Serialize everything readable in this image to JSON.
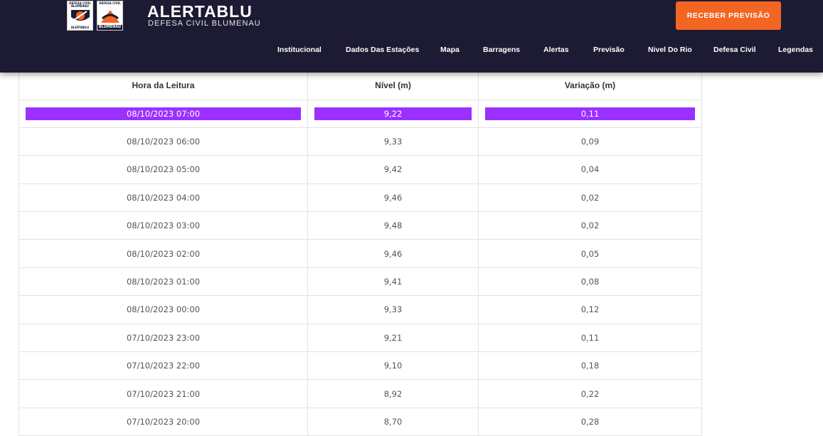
{
  "header": {
    "logo1": {
      "top": "DEFESA CIVIL BLUMENAU",
      "bottom": "ALERTABLU"
    },
    "logo2": {
      "top": "DEFESA CIVIL",
      "bottom": "BLUMENAU"
    },
    "title": "ALERTABLU",
    "subtitle": "DEFESA CIVIL BLUMENAU",
    "cta_label": "RECEBER PREVISÃO",
    "nav": [
      "Institucional",
      "Dados Das Estações",
      "Mapa",
      "Barragens",
      "Alertas",
      "Previsão",
      "Nivel Do Rio",
      "Defesa Civil",
      "Legendas"
    ]
  },
  "colors": {
    "header_bg": "#1c1b33",
    "cta": "#f26522",
    "highlight": "#9b30ff"
  },
  "table": {
    "headers": [
      "Hora da Leitura",
      "Nível (m)",
      "Variação (m)"
    ],
    "rows": [
      [
        "08/10/2023 07:00",
        "9,22",
        "0,11"
      ],
      [
        "08/10/2023 06:00",
        "9,33",
        "0,09"
      ],
      [
        "08/10/2023 05:00",
        "9,42",
        "0,04"
      ],
      [
        "08/10/2023 04:00",
        "9,46",
        "0,02"
      ],
      [
        "08/10/2023 03:00",
        "9,48",
        "0,02"
      ],
      [
        "08/10/2023 02:00",
        "9,46",
        "0,05"
      ],
      [
        "08/10/2023 01:00",
        "9,41",
        "0,08"
      ],
      [
        "08/10/2023 00:00",
        "9,33",
        "0,12"
      ],
      [
        "07/10/2023 23:00",
        "9,21",
        "0,11"
      ],
      [
        "07/10/2023 22:00",
        "9,10",
        "0,18"
      ],
      [
        "07/10/2023 21:00",
        "8,92",
        "0,22"
      ],
      [
        "07/10/2023 20:00",
        "8,70",
        "0,28"
      ]
    ]
  }
}
